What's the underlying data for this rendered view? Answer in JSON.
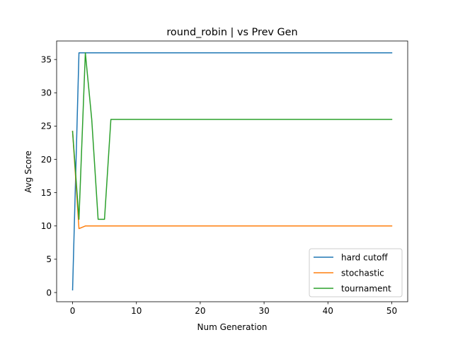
{
  "chart_data": {
    "type": "line",
    "title": "round_robin | vs Prev Gen",
    "xlabel": "Num Generation",
    "ylabel": "Avg Score",
    "xlim": [
      -2.5,
      52.5
    ],
    "ylim": [
      -1.38,
      37.78
    ],
    "xticks": [
      0,
      10,
      20,
      30,
      40,
      50
    ],
    "yticks": [
      0,
      5,
      10,
      15,
      20,
      25,
      30,
      35
    ],
    "grid": false,
    "legend_position": "lower right",
    "series": [
      {
        "name": "hard cutoff",
        "color": "#1f77b4",
        "x": [
          0,
          1,
          2,
          50
        ],
        "y": [
          0.4,
          36,
          36,
          36
        ]
      },
      {
        "name": "stochastic",
        "color": "#ff7f0e",
        "x": [
          0,
          1,
          2,
          50
        ],
        "y": [
          24.2,
          9.6,
          10,
          10
        ]
      },
      {
        "name": "tournament",
        "color": "#2ca02c",
        "x": [
          0,
          1,
          2,
          3,
          4,
          5,
          6,
          50
        ],
        "y": [
          24.2,
          11,
          36,
          26,
          11,
          11,
          26,
          26
        ]
      }
    ]
  }
}
